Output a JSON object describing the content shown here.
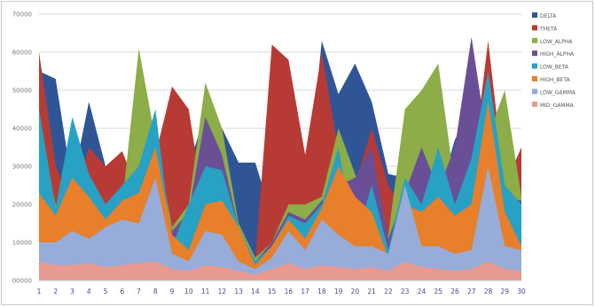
{
  "chart_data": {
    "type": "area",
    "title": "",
    "xlabel": "",
    "ylabel": "",
    "ylim": [
      0,
      70000
    ],
    "yticks": [
      0,
      10000,
      20000,
      30000,
      40000,
      50000,
      60000,
      70000
    ],
    "y_tick_labels": [
      "00000",
      "10000",
      "20000",
      "30000",
      "40000",
      "50000",
      "60000",
      "70000"
    ],
    "grid": true,
    "legend_position": "right",
    "x": [
      1,
      2,
      3,
      4,
      5,
      6,
      7,
      8,
      9,
      10,
      11,
      12,
      13,
      14,
      15,
      16,
      17,
      18,
      19,
      20,
      21,
      22,
      23,
      24,
      25,
      26,
      27,
      28,
      29,
      30
    ],
    "x_tick_labels": [
      "1",
      "2",
      "3",
      "4",
      "5",
      "6",
      "7",
      "8",
      "9",
      "10",
      "11",
      "12",
      "13",
      "14",
      "15",
      "16",
      "17",
      "18",
      "19",
      "20",
      "21",
      "22",
      "23",
      "24",
      "25",
      "26",
      "27",
      "28",
      "29",
      "30"
    ],
    "series": [
      {
        "name": "DELTA",
        "color": "#2f5597",
        "values": [
          55000,
          53000,
          25000,
          47000,
          30000,
          33000,
          24000,
          37000,
          16000,
          30000,
          44000,
          40000,
          31000,
          31000,
          17000,
          22000,
          20000,
          63000,
          49000,
          57000,
          47000,
          28000,
          27000,
          30000,
          22000,
          37000,
          45000,
          35000,
          38000,
          25000
        ]
      },
      {
        "name": "THETA",
        "color": "#b83a35",
        "values": [
          60000,
          30000,
          20000,
          35000,
          30000,
          34000,
          23000,
          33000,
          51000,
          45000,
          17000,
          20000,
          15000,
          5000,
          62000,
          58000,
          33000,
          60000,
          34000,
          25000,
          40000,
          25000,
          18000,
          38000,
          25000,
          28000,
          27000,
          63000,
          25000,
          35000
        ]
      },
      {
        "name": "LOW_ALPHA",
        "color": "#8cad47",
        "values": [
          38000,
          20000,
          17000,
          20000,
          16000,
          20000,
          61000,
          37000,
          14000,
          20000,
          52000,
          40000,
          15000,
          6000,
          10000,
          20000,
          20000,
          22000,
          40000,
          28000,
          16000,
          12000,
          45000,
          50000,
          57000,
          25000,
          30000,
          38000,
          50000,
          22000
        ]
      },
      {
        "name": "HIGH_ALPHA",
        "color": "#6a4f97",
        "values": [
          30000,
          18000,
          16000,
          19000,
          15000,
          19000,
          20000,
          30000,
          13000,
          18000,
          43000,
          33000,
          14000,
          5000,
          10000,
          18000,
          16000,
          21000,
          25000,
          27000,
          35000,
          11000,
          23000,
          35000,
          24000,
          35000,
          64000,
          35000,
          22000,
          21000
        ]
      },
      {
        "name": "LOW_BETA",
        "color": "#27a1c4",
        "values": [
          45000,
          19000,
          43000,
          28000,
          20000,
          25000,
          30000,
          45000,
          9000,
          20000,
          30000,
          29000,
          14000,
          5000,
          9000,
          17000,
          15000,
          20000,
          35000,
          10000,
          25000,
          8000,
          27000,
          20000,
          35000,
          20000,
          32000,
          55000,
          25000,
          20000
        ]
      },
      {
        "name": "HIGH_BETA",
        "color": "#e87f2a",
        "values": [
          23000,
          17000,
          27000,
          22000,
          16000,
          21000,
          23000,
          35000,
          12000,
          8000,
          20000,
          21000,
          14000,
          4000,
          9000,
          16000,
          11000,
          19000,
          30000,
          22000,
          18000,
          6000,
          20000,
          18000,
          22000,
          17000,
          20000,
          47000,
          18000,
          9000
        ]
      },
      {
        "name": "LOW_GAMMA",
        "color": "#97acd8",
        "values": [
          10000,
          10000,
          13000,
          11000,
          14000,
          16000,
          15000,
          27000,
          7000,
          5000,
          13000,
          12000,
          5000,
          3000,
          6000,
          13000,
          8000,
          16000,
          12000,
          9000,
          9000,
          7000,
          25000,
          9000,
          9000,
          7000,
          8000,
          30000,
          9000,
          8000
        ]
      },
      {
        "name": "MID_GAMMA",
        "color": "#e89a90",
        "values": [
          5000,
          4000,
          4000,
          4500,
          3500,
          4000,
          4500,
          5000,
          3000,
          2500,
          4000,
          3500,
          2500,
          1500,
          3000,
          4500,
          3000,
          4000,
          3500,
          3000,
          3500,
          2500,
          5000,
          3500,
          3000,
          2500,
          3000,
          5000,
          3000,
          2500
        ]
      }
    ]
  }
}
